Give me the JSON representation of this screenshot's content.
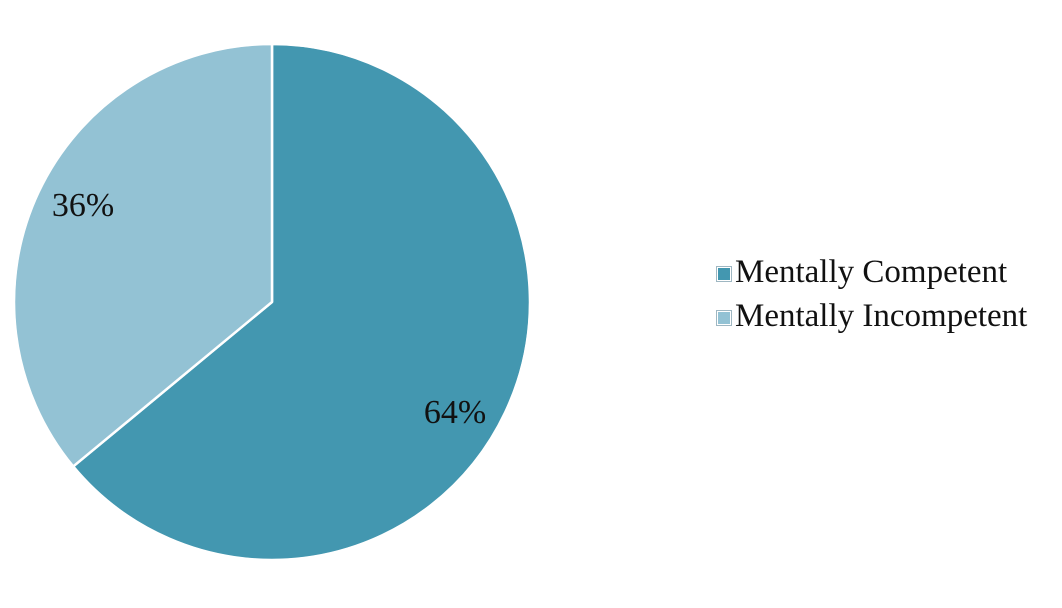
{
  "chart_data": {
    "type": "pie",
    "title": "",
    "categories": [
      "Mentally Competent",
      "Mentally Incompetent"
    ],
    "values": [
      64,
      36
    ],
    "labels": [
      "64%",
      "36%"
    ],
    "colors": [
      "#4397b0",
      "#93c2d4"
    ],
    "legend": "right",
    "legend_entries": [
      "Mentally Competent",
      "Mentally Incompetent"
    ]
  }
}
